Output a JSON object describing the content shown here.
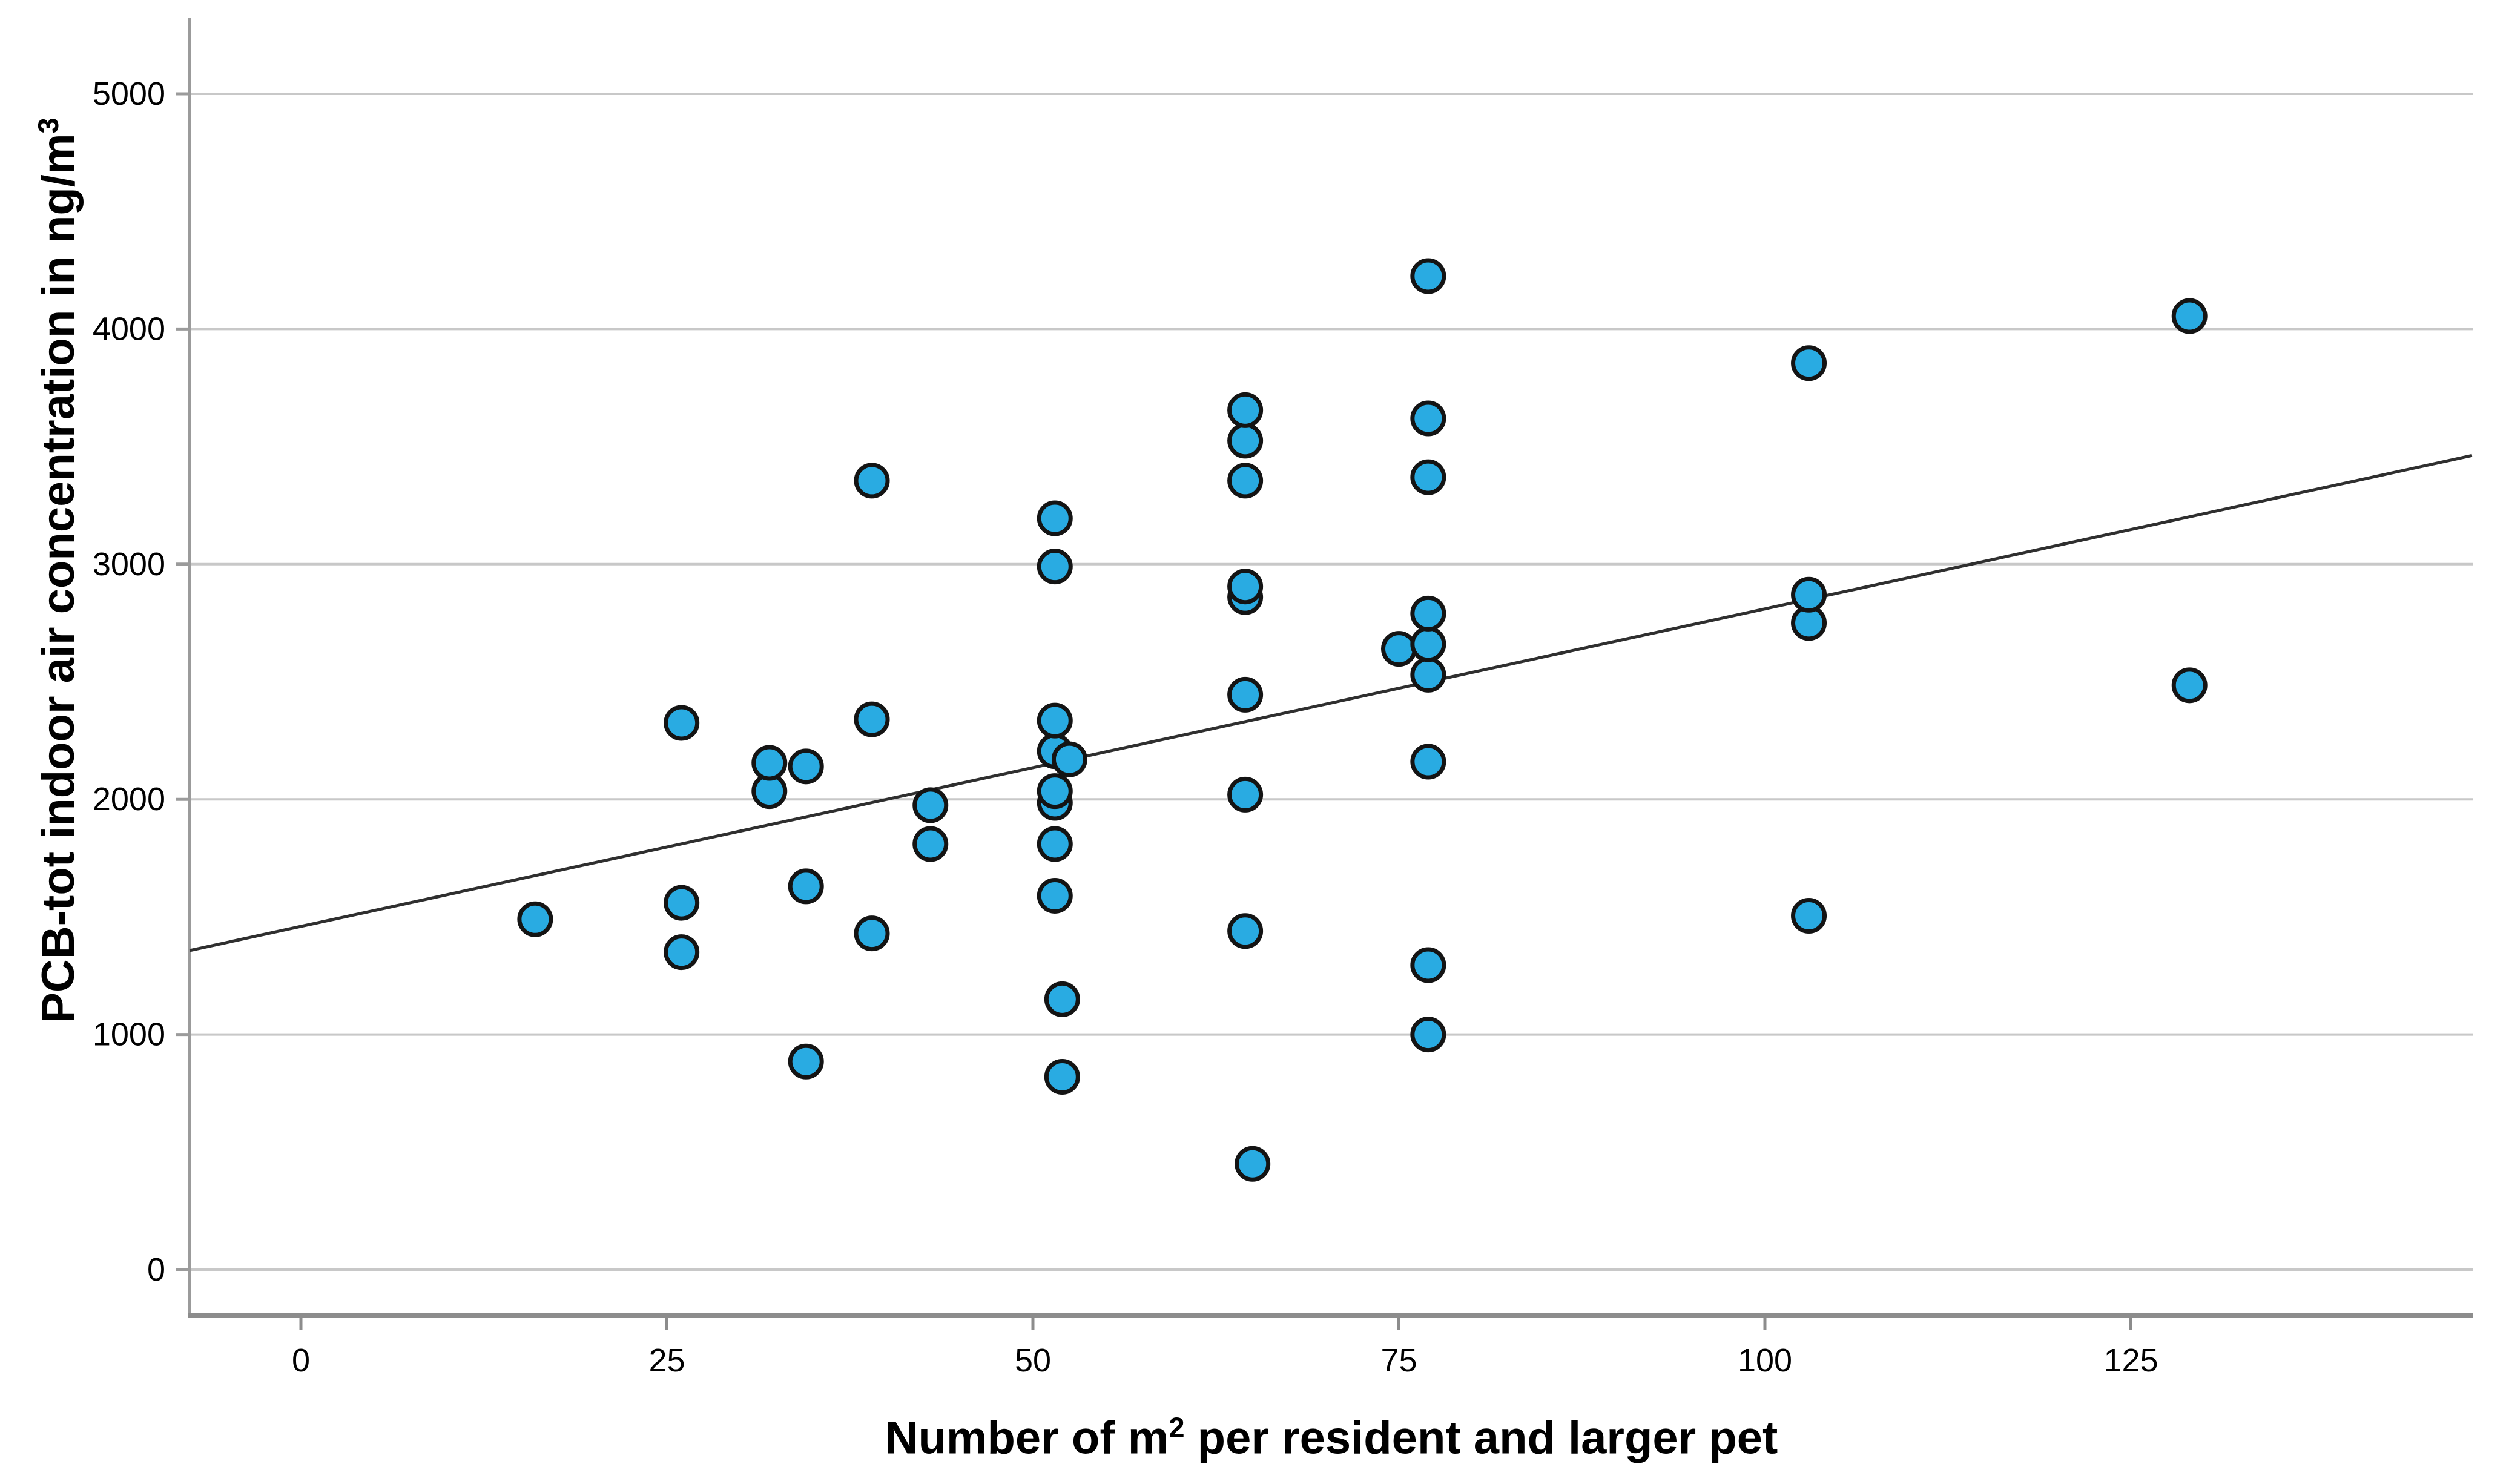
{
  "chart_data": {
    "type": "scatter",
    "title": "",
    "xlabel": {
      "pre": "Number of m",
      "sup": "2",
      "post": " per resident and larger pet"
    },
    "ylabel": {
      "pre": "PCB-tot indoor air concentration in ng/m",
      "sup": "3"
    },
    "x_ticks": [
      0,
      25,
      50,
      75,
      100,
      125
    ],
    "y_ticks": [
      0,
      1000,
      2000,
      3000,
      4000,
      5000
    ],
    "xlim": [
      -7.6,
      148.3
    ],
    "ylim": [
      -196,
      5320
    ],
    "grid": "horizontal",
    "legend": "none",
    "points": [
      [
        16,
        1490
      ],
      [
        26,
        1350
      ],
      [
        26,
        1560
      ],
      [
        26,
        2325
      ],
      [
        32,
        2035
      ],
      [
        32,
        2155
      ],
      [
        34.5,
        885
      ],
      [
        34.5,
        1630
      ],
      [
        34.5,
        2140
      ],
      [
        39,
        1430
      ],
      [
        39,
        2340
      ],
      [
        39,
        3355
      ],
      [
        43,
        1810
      ],
      [
        43,
        1975
      ],
      [
        51.5,
        1590
      ],
      [
        51.5,
        1810
      ],
      [
        51.5,
        1985
      ],
      [
        51.5,
        2035
      ],
      [
        51.5,
        2205
      ],
      [
        51.5,
        2335
      ],
      [
        51.5,
        2990
      ],
      [
        51.5,
        3195
      ],
      [
        52,
        820
      ],
      [
        52,
        1150
      ],
      [
        52.5,
        2170
      ],
      [
        64.5,
        1440
      ],
      [
        64.5,
        2020
      ],
      [
        64.5,
        2445
      ],
      [
        64.5,
        2860
      ],
      [
        64.5,
        2905
      ],
      [
        64.5,
        3355
      ],
      [
        64.5,
        3525
      ],
      [
        64.5,
        3655
      ],
      [
        65,
        450
      ],
      [
        75,
        2640
      ],
      [
        77,
        1000
      ],
      [
        77,
        1295
      ],
      [
        77,
        2160
      ],
      [
        77,
        2530
      ],
      [
        77,
        2660
      ],
      [
        77,
        2790
      ],
      [
        77,
        3370
      ],
      [
        77,
        3620
      ],
      [
        77,
        4225
      ],
      [
        103,
        1505
      ],
      [
        103,
        2750
      ],
      [
        103,
        2870
      ],
      [
        103,
        3855
      ],
      [
        129,
        2485
      ],
      [
        129,
        4055
      ]
    ],
    "trend_line": {
      "x1": -7.6,
      "y1": 1357,
      "x2": 148.3,
      "y2": 3462
    },
    "colors": {
      "point_fill": "#29ABE2",
      "point_stroke": "#141414",
      "gridline": "#C8C8C8",
      "axis_left": "#9B9B9B",
      "axis_bottom": "#8C8C8C",
      "trend": "#2F2F2F",
      "text": "#000000"
    }
  }
}
